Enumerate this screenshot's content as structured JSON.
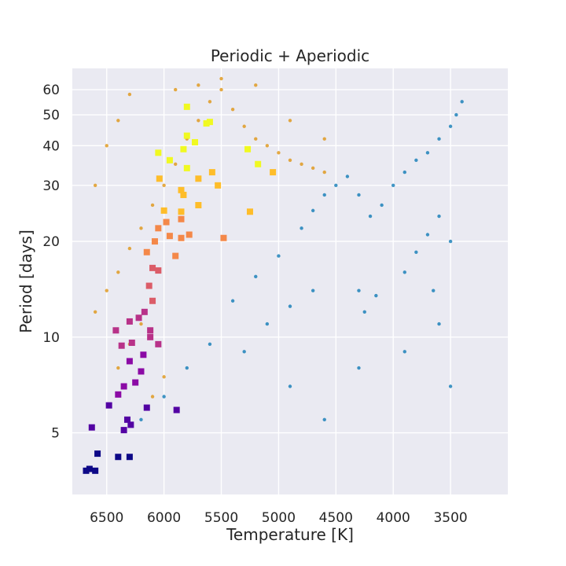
{
  "chart_data": {
    "type": "scatter",
    "title": "Periodic + Aperiodic",
    "xlabel": "Temperature [K]",
    "ylabel": "Period [days]",
    "x_inverted": true,
    "xlim": [
      6800,
      3000
    ],
    "ylim": [
      3.2,
      70
    ],
    "y_scale": "log",
    "grid": true,
    "x_ticks": [
      6500,
      6000,
      5500,
      5000,
      4500,
      4000,
      3500
    ],
    "y_ticks": [
      5,
      10,
      20,
      30,
      40,
      50,
      60
    ],
    "colors": {
      "background": "#eaeaf2",
      "grid": "#ffffff",
      "aperiodic": "#0173b2",
      "periodic": "#de8f05",
      "colormap": [
        "#0d0887",
        "#5302a3",
        "#8b0aa5",
        "#b83289",
        "#db5c68",
        "#f48849",
        "#febd2a",
        "#f0f921"
      ]
    },
    "series": [
      {
        "marker": "small-dot",
        "color": "#0173b2",
        "points": [
          [
            5400,
            13.0
          ],
          [
            5200,
            15.5
          ],
          [
            5000,
            18.0
          ],
          [
            4800,
            22.0
          ],
          [
            4700,
            25.0
          ],
          [
            4600,
            28.0
          ],
          [
            4500,
            30.0
          ],
          [
            4400,
            32.0
          ],
          [
            4300,
            28.0
          ],
          [
            4200,
            24.0
          ],
          [
            4100,
            26.0
          ],
          [
            4000,
            30.0
          ],
          [
            3900,
            33.0
          ],
          [
            3800,
            36.0
          ],
          [
            3700,
            38.0
          ],
          [
            3600,
            42.0
          ],
          [
            3500,
            46.0
          ],
          [
            3450,
            50.0
          ],
          [
            3400,
            55.0
          ],
          [
            4300,
            14.0
          ],
          [
            4250,
            12.0
          ],
          [
            4150,
            13.5
          ],
          [
            3900,
            16.0
          ],
          [
            3800,
            18.5
          ],
          [
            3700,
            21.0
          ],
          [
            3600,
            24.0
          ],
          [
            3500,
            20.0
          ],
          [
            3650,
            14.0
          ],
          [
            5600,
            9.5
          ],
          [
            5800,
            8.0
          ],
          [
            6000,
            6.5
          ],
          [
            6200,
            5.5
          ],
          [
            5300,
            9.0
          ],
          [
            5100,
            11.0
          ],
          [
            4900,
            12.5
          ],
          [
            4700,
            14.0
          ],
          [
            4900,
            7.0
          ],
          [
            4600,
            5.5
          ],
          [
            4300,
            8.0
          ],
          [
            3900,
            9.0
          ],
          [
            3600,
            11.0
          ],
          [
            3500,
            7.0
          ]
        ]
      },
      {
        "marker": "small-dot",
        "color": "#de8f05",
        "points": [
          [
            6600,
            12.0
          ],
          [
            6500,
            14.0
          ],
          [
            6400,
            16.0
          ],
          [
            6300,
            19.0
          ],
          [
            6200,
            22.0
          ],
          [
            6100,
            26.0
          ],
          [
            6000,
            30.0
          ],
          [
            5900,
            35.0
          ],
          [
            5800,
            42.0
          ],
          [
            5700,
            48.0
          ],
          [
            5600,
            55.0
          ],
          [
            5500,
            60.0
          ],
          [
            5400,
            52.0
          ],
          [
            5300,
            46.0
          ],
          [
            5200,
            42.0
          ],
          [
            5100,
            40.0
          ],
          [
            5000,
            38.0
          ],
          [
            4900,
            36.0
          ],
          [
            4800,
            35.0
          ],
          [
            4700,
            34.0
          ],
          [
            4600,
            33.0
          ],
          [
            6400,
            8.0
          ],
          [
            6300,
            9.5
          ],
          [
            6200,
            11.0
          ],
          [
            6100,
            6.5
          ],
          [
            6000,
            7.5
          ],
          [
            5900,
            60.0
          ],
          [
            5700,
            62.0
          ],
          [
            5500,
            65.0
          ],
          [
            5200,
            62.0
          ],
          [
            4900,
            48.0
          ],
          [
            4600,
            42.0
          ],
          [
            6600,
            30.0
          ],
          [
            6500,
            40.0
          ],
          [
            6400,
            48.0
          ],
          [
            6300,
            58.0
          ]
        ]
      },
      {
        "marker": "square",
        "color_scale": "period",
        "points": [
          [
            6680,
            3.8
          ],
          [
            6650,
            3.85
          ],
          [
            6600,
            3.8
          ],
          [
            6630,
            5.2
          ],
          [
            6580,
            4.3
          ],
          [
            6480,
            6.1
          ],
          [
            6400,
            4.2
          ],
          [
            6300,
            4.2
          ],
          [
            6290,
            5.3
          ],
          [
            6350,
            5.1
          ],
          [
            6320,
            5.5
          ],
          [
            6400,
            6.6
          ],
          [
            6350,
            7.0
          ],
          [
            6250,
            7.2
          ],
          [
            6200,
            7.8
          ],
          [
            6300,
            8.4
          ],
          [
            6370,
            9.4
          ],
          [
            6280,
            9.6
          ],
          [
            6180,
            8.8
          ],
          [
            6120,
            10.0
          ],
          [
            6420,
            10.5
          ],
          [
            6300,
            11.2
          ],
          [
            6220,
            11.5
          ],
          [
            6120,
            10.5
          ],
          [
            6050,
            9.5
          ],
          [
            6170,
            12.0
          ],
          [
            6100,
            13.0
          ],
          [
            6130,
            14.5
          ],
          [
            6050,
            16.2
          ],
          [
            6100,
            16.5
          ],
          [
            6150,
            18.5
          ],
          [
            5900,
            18.0
          ],
          [
            6080,
            20.0
          ],
          [
            5950,
            20.8
          ],
          [
            5850,
            20.5
          ],
          [
            5780,
            21.0
          ],
          [
            6050,
            22.0
          ],
          [
            5980,
            23.0
          ],
          [
            5850,
            23.5
          ],
          [
            6000,
            25.0
          ],
          [
            5850,
            24.8
          ],
          [
            5700,
            26.0
          ],
          [
            5830,
            28.0
          ],
          [
            5850,
            29.0
          ],
          [
            5530,
            30.0
          ],
          [
            5700,
            31.5
          ],
          [
            6040,
            31.5
          ],
          [
            5800,
            34.0
          ],
          [
            5950,
            36.0
          ],
          [
            5580,
            33.0
          ],
          [
            5250,
            24.8
          ],
          [
            5480,
            20.5
          ],
          [
            5890,
            5.9
          ],
          [
            6150,
            6.0
          ],
          [
            5830,
            39.0
          ],
          [
            5730,
            41.0
          ],
          [
            5800,
            43.0
          ],
          [
            5630,
            47.0
          ],
          [
            5800,
            53.0
          ],
          [
            5180,
            35.0
          ],
          [
            5050,
            33.0
          ],
          [
            5270,
            39.0
          ],
          [
            6050,
            38.0
          ],
          [
            5600,
            47.5
          ]
        ]
      }
    ]
  }
}
